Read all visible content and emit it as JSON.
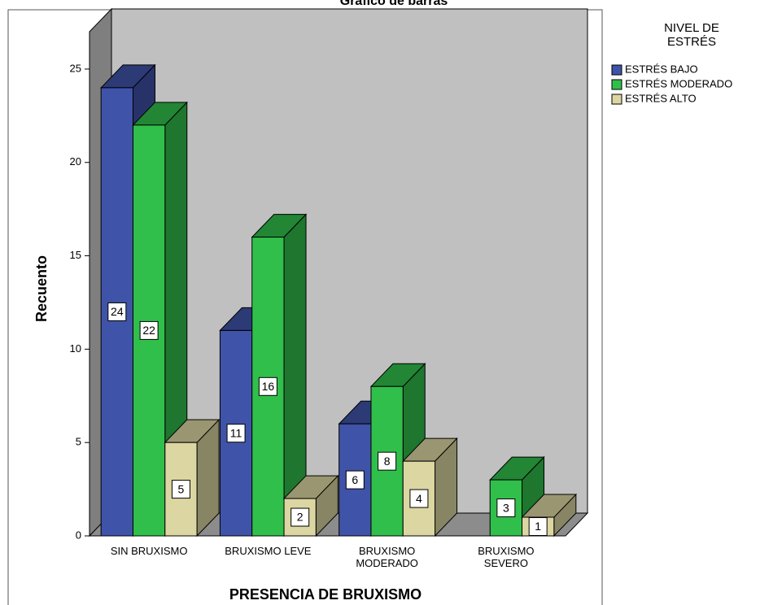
{
  "chart_data": {
    "type": "bar3d",
    "title": "Gráfico de barras",
    "x_label": "PRESENCIA DE BRUXISMO",
    "y_label": "Recuento",
    "categories": [
      "SIN BRUXISMO",
      "BRUXISMO LEVE",
      "BRUXISMO\nMODERADO",
      "BRUXISMO\nSEVERO"
    ],
    "legend_title": "NIVEL DE\nESTRÉS",
    "series": [
      {
        "name": "ESTRÉS BAJO",
        "color": "#3f53a8",
        "values": [
          24,
          11,
          6,
          null
        ]
      },
      {
        "name": "ESTRÉS MODERADO",
        "color": "#31bf4b",
        "values": [
          22,
          16,
          8,
          3
        ]
      },
      {
        "name": "ESTRÉS ALTO",
        "color": "#dcd6a2",
        "values": [
          5,
          2,
          4,
          1
        ]
      }
    ],
    "ylim": [
      0,
      27
    ],
    "yticks": [
      0,
      5,
      10,
      15,
      20,
      25
    ]
  }
}
